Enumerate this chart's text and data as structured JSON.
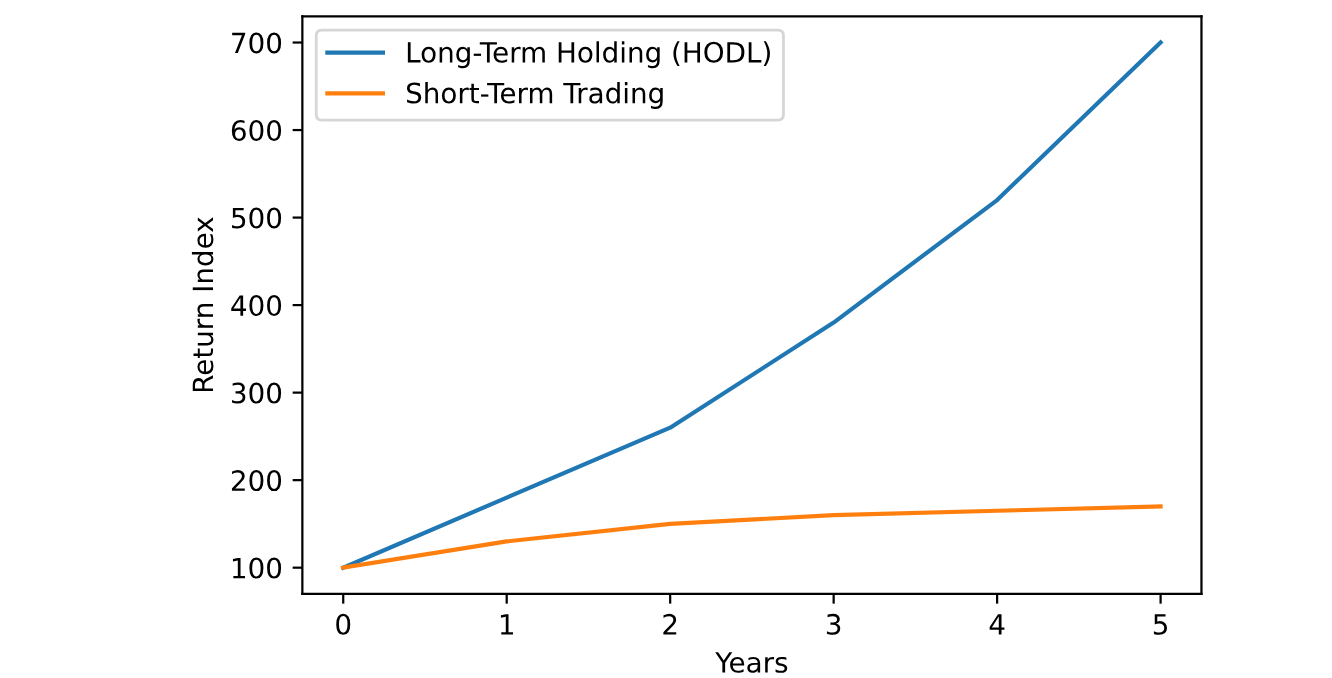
{
  "chart_data": {
    "type": "line",
    "xlabel": "Years",
    "ylabel": "Return Index",
    "x": [
      0,
      1,
      2,
      3,
      4,
      5
    ],
    "series": [
      {
        "name": "Long-Term Holding (HODL)",
        "color": "#1f77b4",
        "values": [
          100,
          180,
          260,
          380,
          520,
          700
        ]
      },
      {
        "name": "Short-Term Trading",
        "color": "#ff7f0e",
        "values": [
          100,
          130,
          150,
          160,
          165,
          170
        ]
      }
    ],
    "xlim": [
      -0.25,
      5.25
    ],
    "xticks": [
      0,
      1,
      2,
      3,
      4,
      5
    ],
    "ylim": [
      70,
      730
    ],
    "yticks": [
      100,
      200,
      300,
      400,
      500,
      600,
      700
    ],
    "grid": false,
    "legend": "top left",
    "marker": "none",
    "line_style": "solid"
  }
}
